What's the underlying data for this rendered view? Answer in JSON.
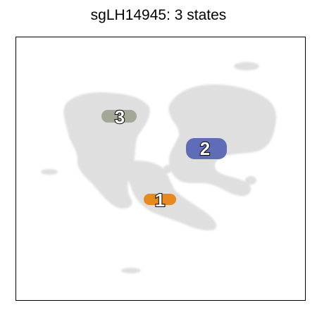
{
  "title": "sgLH14945: 3 states",
  "chart_data": {
    "type": "scatter",
    "title": "sgLH14945: 3 states",
    "xlabel": "",
    "ylabel": "",
    "axes_ticks": false,
    "background_color": "#dcdcdc",
    "clusters": [
      {
        "label": "1",
        "color": "#e8891d"
      },
      {
        "label": "2",
        "color": "#5f6cb7"
      },
      {
        "label": "3",
        "color": "#a3a896"
      }
    ]
  }
}
